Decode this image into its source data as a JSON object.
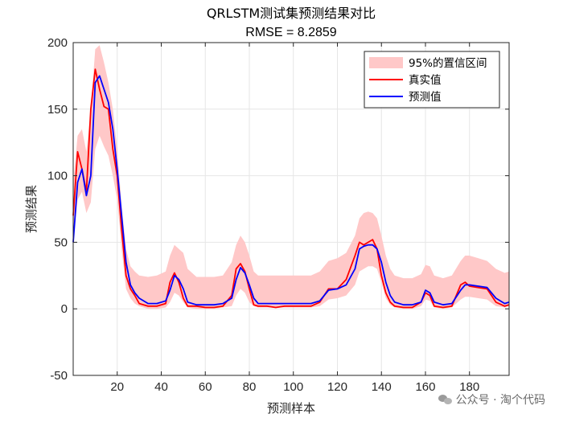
{
  "chart_data": {
    "type": "line",
    "title": "QRLSTM测试集预测结果对比",
    "subtitle": "RMSE = 8.2859",
    "xlabel": "预测样本",
    "ylabel": "预测结果",
    "xlim": [
      0,
      198
    ],
    "ylim": [
      -50,
      200
    ],
    "xticks": [
      20,
      40,
      60,
      80,
      100,
      120,
      140,
      160,
      180
    ],
    "yticks": [
      -50,
      0,
      50,
      100,
      150,
      200
    ],
    "grid": true,
    "legend_position": "top-right",
    "legend": [
      "95%的置信区间",
      "真实值",
      "预测值"
    ],
    "colors": {
      "band": "#ffc8c8",
      "actual": "#ff0000",
      "predicted": "#0000ff"
    },
    "x": [
      0,
      2,
      4,
      6,
      8,
      10,
      12,
      14,
      16,
      18,
      20,
      22,
      24,
      26,
      28,
      30,
      34,
      38,
      42,
      44,
      46,
      48,
      50,
      52,
      56,
      60,
      64,
      68,
      72,
      74,
      76,
      78,
      80,
      82,
      84,
      88,
      92,
      96,
      100,
      104,
      108,
      112,
      116,
      120,
      124,
      128,
      130,
      132,
      134,
      136,
      138,
      140,
      142,
      144,
      146,
      150,
      154,
      158,
      160,
      162,
      164,
      168,
      172,
      176,
      178,
      180,
      184,
      188,
      192,
      196,
      198
    ],
    "series": [
      {
        "name": "真实值",
        "values": [
          70,
          118,
          105,
          88,
          150,
          180,
          165,
          152,
          150,
          120,
          100,
          60,
          25,
          15,
          10,
          4,
          2,
          2,
          4,
          20,
          27,
          20,
          8,
          2,
          2,
          1,
          1,
          2,
          10,
          30,
          34,
          28,
          15,
          3,
          2,
          2,
          1,
          2,
          2,
          2,
          2,
          5,
          15,
          15,
          22,
          40,
          50,
          48,
          50,
          52,
          45,
          25,
          12,
          5,
          2,
          1,
          1,
          5,
          12,
          10,
          2,
          1,
          2,
          18,
          20,
          17,
          16,
          15,
          5,
          2,
          3
        ]
      },
      {
        "name": "预测值",
        "values": [
          50,
          95,
          105,
          85,
          100,
          170,
          175,
          165,
          155,
          135,
          105,
          70,
          35,
          18,
          12,
          8,
          4,
          4,
          6,
          14,
          25,
          22,
          15,
          5,
          3,
          3,
          3,
          4,
          8,
          22,
          31,
          27,
          18,
          8,
          4,
          4,
          4,
          4,
          4,
          4,
          4,
          6,
          14,
          15,
          18,
          30,
          45,
          47,
          48,
          48,
          45,
          35,
          20,
          10,
          5,
          3,
          3,
          5,
          14,
          12,
          5,
          3,
          4,
          14,
          18,
          18,
          17,
          16,
          8,
          4,
          5
        ]
      },
      {
        "name": "95%的置信区间",
        "lower": [
          50,
          82,
          88,
          72,
          80,
          120,
          130,
          122,
          115,
          100,
          82,
          45,
          15,
          8,
          4,
          2,
          0,
          0,
          1,
          5,
          12,
          10,
          5,
          1,
          0,
          0,
          0,
          1,
          2,
          10,
          15,
          12,
          5,
          2,
          1,
          1,
          1,
          1,
          1,
          1,
          1,
          2,
          7,
          8,
          10,
          18,
          28,
          30,
          32,
          32,
          30,
          20,
          8,
          3,
          1,
          0,
          0,
          2,
          7,
          6,
          1,
          0,
          1,
          7,
          9,
          9,
          8,
          7,
          2,
          1,
          2
        ],
        "upper": [
          95,
          130,
          135,
          118,
          150,
          195,
          198,
          185,
          170,
          150,
          120,
          78,
          45,
          32,
          28,
          25,
          24,
          25,
          28,
          40,
          48,
          45,
          42,
          30,
          24,
          24,
          24,
          25,
          35,
          48,
          55,
          50,
          40,
          28,
          25,
          25,
          25,
          25,
          25,
          25,
          25,
          28,
          36,
          38,
          42,
          55,
          68,
          72,
          73,
          72,
          68,
          55,
          40,
          30,
          25,
          23,
          23,
          26,
          33,
          32,
          25,
          23,
          25,
          36,
          40,
          40,
          38,
          36,
          30,
          27,
          28
        ]
      }
    ]
  },
  "watermark": {
    "text": "公众号 · 淘个代码"
  }
}
